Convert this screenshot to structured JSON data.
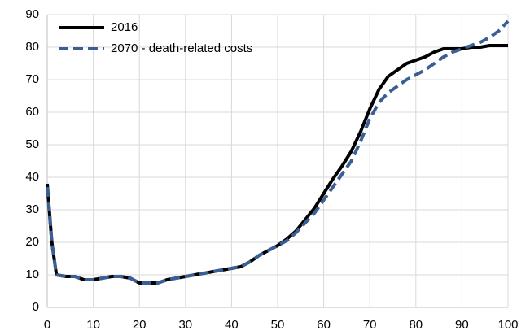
{
  "chart_data": {
    "type": "line",
    "x": [
      0,
      1,
      2,
      4,
      6,
      8,
      10,
      12,
      14,
      16,
      18,
      20,
      22,
      24,
      26,
      28,
      30,
      32,
      34,
      36,
      38,
      40,
      42,
      44,
      46,
      48,
      50,
      52,
      54,
      56,
      58,
      60,
      62,
      64,
      66,
      68,
      70,
      72,
      74,
      76,
      78,
      80,
      82,
      84,
      86,
      88,
      90,
      92,
      94,
      96,
      98,
      100
    ],
    "series": [
      {
        "name": "2016",
        "color": "#000000",
        "dash": false,
        "values": [
          38,
          20,
          10,
          9.5,
          9.5,
          8.5,
          8.5,
          9,
          9.5,
          9.5,
          9,
          7.5,
          7.5,
          7.5,
          8.5,
          9,
          9.5,
          10,
          10.5,
          11,
          11.5,
          12,
          12.5,
          14,
          16,
          17.5,
          19,
          21,
          23.5,
          27,
          30.5,
          35,
          39.5,
          43.5,
          48,
          54,
          61,
          67,
          71,
          73,
          75,
          76,
          77,
          78.5,
          79.5,
          79.5,
          79.5,
          80,
          80,
          80.5,
          80.5,
          80.5
        ]
      },
      {
        "name": "2070 - death-related costs",
        "color": "#3a5f94",
        "dash": true,
        "values": [
          37,
          20,
          10,
          9.5,
          9.5,
          8.5,
          8.5,
          9,
          9.5,
          9.5,
          9,
          7.5,
          7.5,
          7.5,
          8.5,
          9,
          9.5,
          10,
          10.5,
          11,
          11.5,
          12,
          12.5,
          14,
          16,
          17.5,
          19,
          20.5,
          23,
          26,
          29,
          33,
          37,
          41,
          45,
          51,
          58,
          63,
          66,
          68,
          70,
          71.5,
          73,
          75,
          77,
          78.5,
          79.5,
          80.5,
          81.5,
          83,
          85,
          88
        ]
      }
    ],
    "xlim": [
      0,
      100
    ],
    "xticks": [
      0,
      10,
      20,
      30,
      40,
      50,
      60,
      70,
      80,
      90,
      100
    ],
    "ylim": [
      0,
      90
    ],
    "yticks": [
      0,
      10,
      20,
      30,
      40,
      50,
      60,
      70,
      80,
      90
    ],
    "grid": true,
    "legend": "upper-left"
  }
}
